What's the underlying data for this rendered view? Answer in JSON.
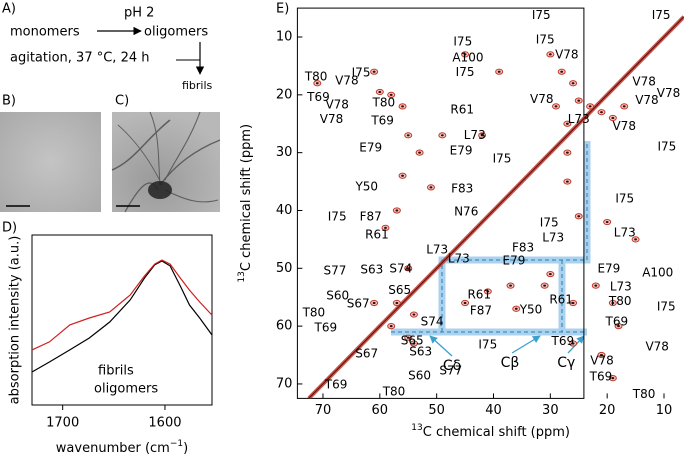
{
  "figure": {
    "panel_labels": [
      "A)",
      "B)",
      "C)",
      "D)",
      "E)"
    ],
    "scheme": {
      "start": "monomers",
      "condition": "pH 2",
      "product": "oligomers",
      "conditions": "agitation, 37 °C, 24 h",
      "end": "fibrils"
    }
  },
  "chart_data": [
    {
      "type": "line",
      "y_label": "absorption intensity (a.u.)",
      "x_label": "wavenumber (cm",
      "x_label_sup": "−1",
      "x_label_end": ")",
      "x": [
        1730,
        1713,
        1693,
        1674,
        1654,
        1634,
        1620,
        1610,
        1603,
        1595,
        1585,
        1576,
        1566,
        1554
      ],
      "series": [
        {
          "name": "fibrils",
          "color": "#000000",
          "values": [
            0.194,
            0.253,
            0.324,
            0.394,
            0.488,
            0.618,
            0.747,
            0.824,
            0.847,
            0.818,
            0.7,
            0.588,
            0.512,
            0.412
          ]
        },
        {
          "name": "oligomers",
          "color": "#d21f1f",
          "values": [
            0.324,
            0.371,
            0.471,
            0.512,
            0.547,
            0.647,
            0.759,
            0.829,
            0.853,
            0.829,
            0.747,
            0.676,
            0.606,
            0.529
          ]
        }
      ],
      "xlim": [
        1730,
        1554
      ],
      "xticks": [
        1700,
        1600
      ],
      "ylim": [
        0,
        1
      ]
    },
    {
      "type": "contour",
      "x_label_sup": "13",
      "x_label": "C chemical shift (ppm)",
      "y_label_sup": "13",
      "y_label": "C chemical shift (ppm)",
      "xlim": [
        74.5,
        6.5
      ],
      "xticks": [
        70,
        60,
        50,
        40,
        30,
        20,
        10
      ],
      "ylim": [
        72.5,
        5
      ],
      "yticks": [
        10,
        20,
        30,
        40,
        50,
        60,
        70
      ],
      "color": "#c0392b",
      "assignment_color": "#3aa0d0",
      "peaks": {
        "x": [
          61,
          60,
          71,
          58,
          45,
          39,
          30,
          28,
          26,
          25,
          23,
          21,
          19,
          17,
          29,
          56,
          55,
          53,
          49,
          42,
          56,
          51,
          57,
          59,
          55,
          57,
          54,
          61,
          58,
          37,
          30,
          31,
          36,
          26,
          22,
          19,
          18,
          21,
          19,
          55,
          54,
          45,
          41,
          26,
          15,
          20,
          27,
          27,
          25,
          27
        ],
        "y": [
          16,
          19.5,
          18,
          20,
          13,
          16,
          13,
          16,
          18,
          21,
          22,
          23,
          24,
          22,
          22,
          22,
          27,
          30,
          27,
          27,
          34,
          36,
          40,
          43,
          50,
          56,
          58,
          56,
          60,
          53,
          51,
          53,
          57,
          56,
          53,
          56,
          60,
          65,
          69,
          62,
          63,
          56,
          54,
          63,
          45,
          42,
          25,
          30,
          41,
          35
        ]
      },
      "annotations": [
        {
          "text": "I75",
          "x": 45.4,
          "y": 10.9
        },
        {
          "text": "A100",
          "x": 44.5,
          "y": 13.6
        },
        {
          "text": "I75",
          "x": 45.0,
          "y": 16.1
        },
        {
          "text": "I75",
          "x": 63.3,
          "y": 16.2
        },
        {
          "text": "T80",
          "x": 71.2,
          "y": 16.9
        },
        {
          "text": "V78",
          "x": 65.8,
          "y": 17.6
        },
        {
          "text": "T69",
          "x": 70.8,
          "y": 20.5
        },
        {
          "text": "V78",
          "x": 67.5,
          "y": 21.8
        },
        {
          "text": "V78",
          "x": 68.5,
          "y": 24.3
        },
        {
          "text": "T80",
          "x": 59.3,
          "y": 21.4
        },
        {
          "text": "T69",
          "x": 59.5,
          "y": 24.5
        },
        {
          "text": "R61",
          "x": 45.5,
          "y": 22.6
        },
        {
          "text": "I75",
          "x": 31.6,
          "y": 6.3
        },
        {
          "text": "I75",
          "x": 30.9,
          "y": 10.5
        },
        {
          "text": "V78",
          "x": 27.1,
          "y": 13.1
        },
        {
          "text": "V78",
          "x": 31.5,
          "y": 20.8
        },
        {
          "text": "L73",
          "x": 25.0,
          "y": 24.3
        },
        {
          "text": "I75",
          "x": 10.5,
          "y": 6.3
        },
        {
          "text": "V78",
          "x": 9.2,
          "y": 19.8
        },
        {
          "text": "V78",
          "x": 13.5,
          "y": 17.8
        },
        {
          "text": "V78",
          "x": 13.0,
          "y": 21.0
        },
        {
          "text": "V78",
          "x": 17.0,
          "y": 25.5
        },
        {
          "text": "I75",
          "x": 9.5,
          "y": 29.0
        },
        {
          "text": "E79",
          "x": 61.6,
          "y": 29.2
        },
        {
          "text": "E79",
          "x": 45.7,
          "y": 29.7
        },
        {
          "text": "L73",
          "x": 43.3,
          "y": 27.0
        },
        {
          "text": "I75",
          "x": 38.5,
          "y": 31.1
        },
        {
          "text": "Y50",
          "x": 62.3,
          "y": 35.9
        },
        {
          "text": "F83",
          "x": 45.5,
          "y": 36.3
        },
        {
          "text": "I75",
          "x": 67.5,
          "y": 41.1
        },
        {
          "text": "F87",
          "x": 61.6,
          "y": 41.1
        },
        {
          "text": "N76",
          "x": 44.8,
          "y": 40.3
        },
        {
          "text": "R61",
          "x": 60.5,
          "y": 44.2
        },
        {
          "text": "L73",
          "x": 49.9,
          "y": 46.8
        },
        {
          "text": "I75",
          "x": 30.2,
          "y": 42.2
        },
        {
          "text": "L73",
          "x": 29.5,
          "y": 44.8
        },
        {
          "text": "L73",
          "x": 16.9,
          "y": 43.9
        },
        {
          "text": "I75",
          "x": 16.9,
          "y": 38.0
        },
        {
          "text": "F83",
          "x": 34.8,
          "y": 46.5
        },
        {
          "text": "L73",
          "x": 46.1,
          "y": 48.4
        },
        {
          "text": "E79",
          "x": 36.4,
          "y": 48.7
        },
        {
          "text": "E79",
          "x": 19.7,
          "y": 50.1
        },
        {
          "text": "A100",
          "x": 11.1,
          "y": 50.8
        },
        {
          "text": "L73",
          "x": 17.6,
          "y": 53.2
        },
        {
          "text": "S77",
          "x": 67.9,
          "y": 50.5
        },
        {
          "text": "S63",
          "x": 61.4,
          "y": 50.3
        },
        {
          "text": "S74",
          "x": 56.3,
          "y": 50.1
        },
        {
          "text": "S65",
          "x": 56.5,
          "y": 53.8
        },
        {
          "text": "S60",
          "x": 67.4,
          "y": 54.8
        },
        {
          "text": "S67",
          "x": 63.8,
          "y": 56.2
        },
        {
          "text": "T80",
          "x": 71.6,
          "y": 57.7
        },
        {
          "text": "T69",
          "x": 69.5,
          "y": 60.3
        },
        {
          "text": "R61",
          "x": 42.5,
          "y": 54.6
        },
        {
          "text": "F87",
          "x": 42.2,
          "y": 57.4
        },
        {
          "text": "Y50",
          "x": 33.4,
          "y": 57.2
        },
        {
          "text": "R61",
          "x": 28.1,
          "y": 55.5
        },
        {
          "text": "T80",
          "x": 17.7,
          "y": 55.7
        },
        {
          "text": "I75",
          "x": 9.6,
          "y": 56.7
        },
        {
          "text": "T69",
          "x": 18.3,
          "y": 59.3
        },
        {
          "text": "S65",
          "x": 54.3,
          "y": 62.6
        },
        {
          "text": "S74",
          "x": 50.8,
          "y": 59.3
        },
        {
          "text": "I75",
          "x": 41.0,
          "y": 63.3
        },
        {
          "text": "T69",
          "x": 27.8,
          "y": 62.7
        },
        {
          "text": "V78",
          "x": 11.2,
          "y": 63.6
        },
        {
          "text": "V78",
          "x": 20.9,
          "y": 66.0
        },
        {
          "text": "T69",
          "x": 21.1,
          "y": 68.8
        },
        {
          "text": "T80",
          "x": 13.5,
          "y": 71.8
        },
        {
          "text": "S67",
          "x": 62.3,
          "y": 64.8
        },
        {
          "text": "S63",
          "x": 52.8,
          "y": 64.5
        },
        {
          "text": "S60",
          "x": 53.0,
          "y": 68.6
        },
        {
          "text": "S77",
          "x": 47.5,
          "y": 67.8
        },
        {
          "text": "T69",
          "x": 67.7,
          "y": 70.2
        },
        {
          "text": "T80",
          "x": 57.5,
          "y": 71.4
        }
      ],
      "assignment_labels": [
        {
          "text": "Cδ",
          "x": 47.3,
          "y": 66.9
        },
        {
          "text": "Cβ",
          "x": 37.1,
          "y": 66.4
        },
        {
          "text": "Cγ",
          "x": 27.2,
          "y": 66.4
        }
      ]
    }
  ]
}
